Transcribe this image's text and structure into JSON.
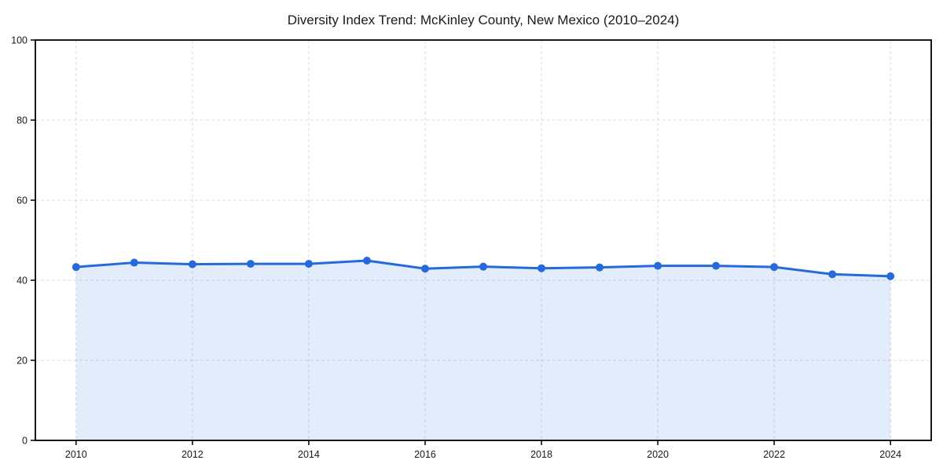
{
  "chart_data": {
    "type": "line",
    "title": "Diversity Index Trend: McKinley County, New Mexico (2010–2024)",
    "x": [
      2010,
      2011,
      2012,
      2013,
      2014,
      2015,
      2016,
      2017,
      2018,
      2019,
      2020,
      2021,
      2022,
      2023,
      2024
    ],
    "series": [
      {
        "name": "Diversity Index",
        "values": [
          43.3,
          44.4,
          44.0,
          44.1,
          44.1,
          44.9,
          42.9,
          43.4,
          43.0,
          43.2,
          43.6,
          43.6,
          43.3,
          41.5,
          41.0
        ]
      }
    ],
    "xlabel": "",
    "ylabel": "",
    "ylim": [
      0,
      100
    ],
    "yticks": [
      0,
      20,
      40,
      60,
      80,
      100
    ],
    "xticks": [
      2010,
      2012,
      2014,
      2016,
      2018,
      2020,
      2022,
      2024
    ],
    "grid": {
      "visible": true,
      "style": "dashed",
      "color": "#dcdcdc"
    },
    "legend_position": "none",
    "marker": "circle",
    "colors": {
      "line": "#2569dd",
      "marker": "#2569dd",
      "fill": "rgba(37,105,221,0.13)",
      "axis": "#000000",
      "tick_label": "#1a1a1a",
      "title": "#1a1a1a",
      "background": "#ffffff"
    }
  }
}
